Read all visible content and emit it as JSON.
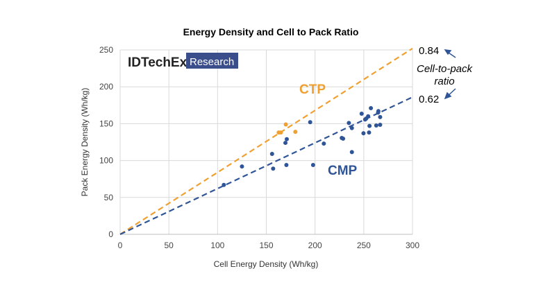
{
  "chart_data": {
    "type": "scatter",
    "title": "Energy Density and Cell to Pack Ratio",
    "xlabel": "Cell Energy Density (Wh/kg)",
    "ylabel": "Pack Energy Density (Wh/kg)",
    "xlim": [
      0,
      300
    ],
    "ylim": [
      0,
      250
    ],
    "xticks": [
      0,
      50,
      100,
      150,
      200,
      250,
      300
    ],
    "yticks": [
      0,
      50,
      100,
      150,
      200,
      250
    ],
    "grid": true,
    "series": [
      {
        "name": "CTP",
        "color": "#F0A030",
        "points": [
          [
            162.7,
            138
          ],
          [
            164.9,
            138
          ],
          [
            170,
            149
          ],
          [
            179.8,
            139
          ]
        ]
      },
      {
        "name": "CMP",
        "color": "#2F5597",
        "points": [
          [
            106.4,
            67
          ],
          [
            125,
            92
          ],
          [
            155.9,
            109
          ],
          [
            157,
            89
          ],
          [
            169.6,
            124
          ],
          [
            171,
            129
          ],
          [
            170.6,
            94
          ],
          [
            195,
            152
          ],
          [
            198,
            94
          ],
          [
            209,
            123
          ],
          [
            227.4,
            130.6
          ],
          [
            228.8,
            129.7
          ],
          [
            234.7,
            151
          ],
          [
            237.8,
            144
          ],
          [
            237.8,
            111.5
          ],
          [
            247.8,
            163.5
          ],
          [
            249.7,
            137
          ],
          [
            251.4,
            155.7
          ],
          [
            252.5,
            157
          ],
          [
            254.5,
            160
          ],
          [
            255.4,
            138
          ],
          [
            255.9,
            147
          ],
          [
            257.3,
            171
          ],
          [
            262.8,
            147.6
          ],
          [
            264.7,
            165
          ],
          [
            265,
            167
          ],
          [
            266.8,
            159
          ],
          [
            266.8,
            148.5
          ]
        ]
      }
    ],
    "trendlines": [
      {
        "series": "CTP",
        "slope": 0.84,
        "label": "0.84",
        "color": "#F0A030"
      },
      {
        "series": "CMP",
        "slope": 0.62,
        "label": "0.62",
        "color": "#2F5597"
      }
    ],
    "annotation": [
      "Cell-to-pack",
      "ratio"
    ]
  },
  "logo": {
    "brand": "IDTechEx",
    "tag": "Research"
  }
}
